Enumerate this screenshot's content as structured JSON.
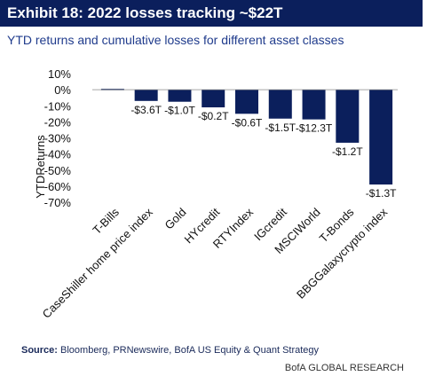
{
  "header": {
    "title": "Exhibit 18: 2022 losses tracking ~$22T",
    "subtitle": "YTD returns and cumulative losses for different asset classes"
  },
  "colors": {
    "title_bar": "#0b1f5c",
    "bar": "#0b1f5c",
    "subtitle": "#1f3b8c"
  },
  "chart_data": {
    "type": "bar",
    "ylabel": "YTDReturns",
    "ylim": [
      -70,
      10
    ],
    "yticks": [
      "10%",
      "0%",
      "-10%",
      "-20%",
      "-30%",
      "-40%",
      "-50%",
      "-60%",
      "-70%"
    ],
    "ytick_values": [
      10,
      0,
      -10,
      -20,
      -30,
      -40,
      -50,
      -60,
      -70
    ],
    "grid": false,
    "categories": [
      "T-Bills",
      "CaseShiller home price index",
      "Gold",
      "HYcredit",
      "RTYIndex",
      "IGcredit",
      "MSCIWorld",
      "T-Bonds",
      "BBGGalaxycrypto index"
    ],
    "values": [
      0.5,
      -7,
      -7.5,
      -11,
      -15,
      -18,
      -18.5,
      -33,
      -59
    ],
    "data_labels": [
      "",
      "-$3.6T",
      "-$1.0T",
      "-$0.2T",
      "-$0.6T",
      "-$1.5T",
      "-$12.3T",
      "-$1.2T",
      "-$1.3T"
    ]
  },
  "source": {
    "prefix": "Source:",
    "text": " Bloomberg, PRNewswire, BofA US Equity & Quant Strategy"
  },
  "footer": "BofA GLOBAL RESEARCH"
}
